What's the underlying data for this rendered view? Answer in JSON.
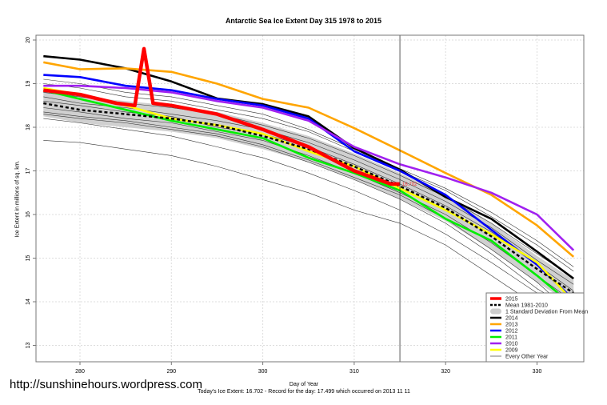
{
  "chart_data": {
    "type": "line",
    "title": "Antarctic Sea Ice Extent Day 315 1978 to 2015",
    "xlabel": "Day of Year",
    "ylabel": "Ice Extent in millions of sq. km.",
    "xlim": [
      275,
      335
    ],
    "ylim": [
      12.7,
      20.1
    ],
    "xticks": [
      280,
      290,
      300,
      310,
      320,
      330
    ],
    "yticks": [
      13,
      14,
      15,
      16,
      17,
      18,
      19,
      20
    ],
    "grid": true,
    "legend_position": "bottom-right",
    "marker_day": 315,
    "today_label": "16.702",
    "x": [
      276,
      280,
      285,
      290,
      295,
      300,
      305,
      310,
      315,
      320,
      325,
      330,
      334
    ],
    "series": [
      {
        "name": "Mean 1981-2010",
        "color": "#000000",
        "style": "dashed",
        "values": [
          18.55,
          18.4,
          18.3,
          18.2,
          18.05,
          17.8,
          17.5,
          17.1,
          16.65,
          16.15,
          15.5,
          14.75,
          14.2
        ]
      },
      {
        "name": "2014",
        "color": "#000000",
        "values": [
          19.63,
          19.55,
          19.35,
          19.05,
          18.66,
          18.53,
          18.25,
          17.52,
          17.03,
          16.4,
          15.9,
          15.15,
          14.53
        ]
      },
      {
        "name": "2013",
        "color": "#FFA500",
        "values": [
          19.49,
          19.33,
          19.35,
          19.27,
          19.0,
          18.65,
          18.45,
          17.98,
          17.47,
          16.95,
          16.45,
          15.75,
          15.03
        ]
      },
      {
        "name": "2012",
        "color": "#0000FF",
        "values": [
          19.2,
          19.15,
          18.95,
          18.85,
          18.65,
          18.5,
          18.2,
          17.45,
          17.0,
          16.45,
          15.65,
          14.85,
          14.05
        ]
      },
      {
        "name": "2011",
        "color": "#00EE00",
        "values": [
          18.85,
          18.65,
          18.4,
          18.15,
          17.95,
          17.75,
          17.3,
          16.95,
          16.55,
          15.9,
          15.4,
          14.6,
          13.9
        ]
      },
      {
        "name": "2010",
        "color": "#A020F0",
        "values": [
          18.95,
          18.95,
          18.9,
          18.8,
          18.6,
          18.45,
          18.15,
          17.55,
          17.15,
          16.85,
          16.5,
          16.0,
          15.18
        ]
      },
      {
        "name": "2009",
        "color": "#FFFF00",
        "values": [
          18.9,
          18.75,
          18.5,
          18.2,
          18.05,
          17.85,
          17.45,
          17.1,
          16.6,
          16.1,
          15.55,
          14.9,
          14.0
        ]
      }
    ],
    "series_2015": {
      "name": "2015",
      "color": "#FF0000",
      "x": [
        276,
        280,
        284,
        286,
        287,
        288,
        290,
        295,
        300,
        305,
        310,
        314,
        315
      ],
      "values": [
        18.85,
        18.75,
        18.55,
        18.5,
        19.8,
        18.55,
        18.5,
        18.3,
        17.95,
        17.55,
        17.0,
        16.7,
        16.7
      ]
    },
    "std_band": {
      "name": "1 Standard Deviation From Mean",
      "half_width": 0.3
    },
    "other_years": {
      "name": "Every Other Year",
      "values": [
        [
          17.7,
          17.65,
          17.5,
          17.35,
          17.1,
          16.8,
          16.5,
          16.1,
          15.8,
          15.3,
          14.6,
          13.9,
          13.3
        ],
        [
          18.2,
          18.1,
          17.95,
          17.8,
          17.55,
          17.3,
          16.95,
          16.55,
          16.1,
          15.55,
          14.9,
          14.2,
          13.6
        ],
        [
          18.3,
          18.2,
          18.1,
          17.95,
          17.8,
          17.55,
          17.2,
          16.8,
          16.35,
          15.8,
          15.1,
          14.3,
          13.8
        ],
        [
          18.45,
          18.35,
          18.2,
          18.1,
          17.9,
          17.7,
          17.35,
          16.95,
          16.5,
          16.0,
          15.35,
          14.6,
          14.0
        ],
        [
          18.7,
          18.55,
          18.45,
          18.3,
          18.15,
          17.95,
          17.65,
          17.25,
          16.8,
          16.3,
          15.7,
          14.95,
          14.4
        ],
        [
          18.8,
          18.7,
          18.55,
          18.45,
          18.3,
          18.05,
          17.75,
          17.35,
          16.9,
          16.4,
          15.8,
          15.1,
          14.55
        ],
        [
          19.0,
          18.9,
          18.7,
          18.6,
          18.4,
          18.2,
          17.9,
          17.45,
          17.0,
          16.55,
          15.95,
          15.3,
          14.7
        ],
        [
          18.6,
          18.5,
          18.35,
          18.25,
          18.0,
          17.85,
          17.55,
          17.15,
          16.7,
          16.2,
          15.6,
          14.85,
          14.25
        ],
        [
          18.35,
          18.25,
          18.15,
          18.0,
          17.85,
          17.6,
          17.25,
          16.85,
          16.45,
          15.9,
          15.2,
          14.45,
          13.7
        ],
        [
          19.1,
          19.0,
          18.8,
          18.7,
          18.5,
          18.3,
          17.95,
          17.5,
          17.05,
          16.6,
          16.05,
          15.4,
          14.8
        ]
      ]
    },
    "legend": [
      "2015",
      "Mean 1981-2010",
      "1 Standard Deviation From Mean",
      "2014",
      "2013",
      "2012",
      "2011",
      "2010",
      "2009",
      "Every Other Year"
    ]
  },
  "footer": {
    "url": "http://sunshinehours.wordpress.com",
    "note": "Today's Ice Extent: 16.702  - Record for the day: 17.499 which occurred on 2013 11 11"
  }
}
